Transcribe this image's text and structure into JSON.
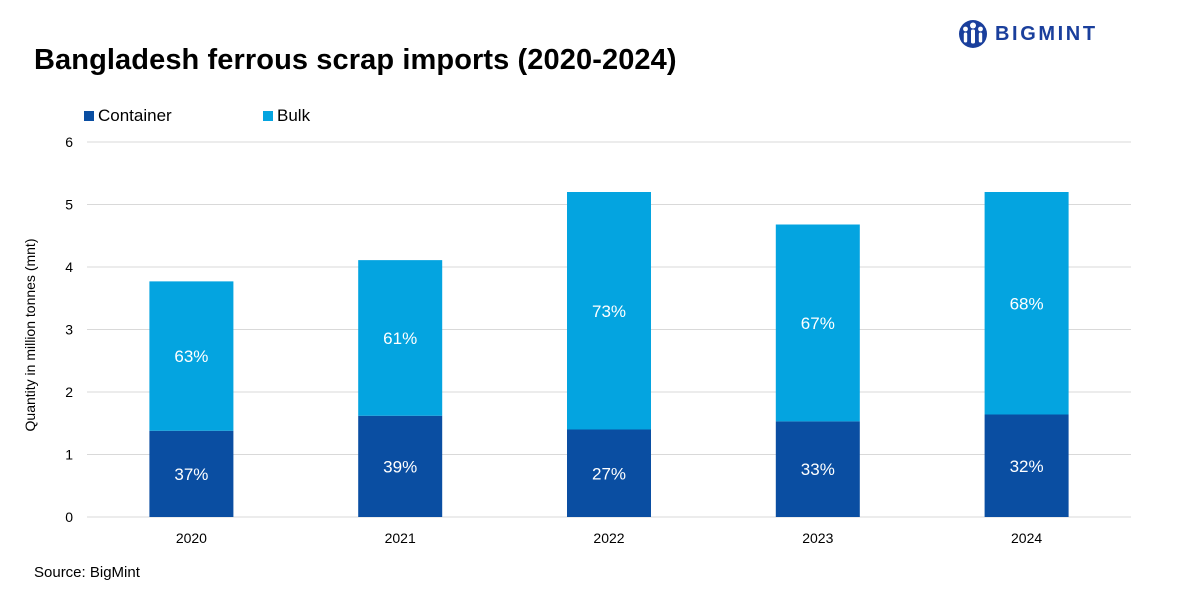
{
  "title": "Bangladesh ferrous scrap imports (2020-2024)",
  "brand": {
    "name": "BIGMINT",
    "color": "#1a3f9c"
  },
  "source": "Source: BigMint",
  "chart_data": {
    "type": "bar",
    "stacked": true,
    "categories": [
      "2020",
      "2021",
      "2022",
      "2023",
      "2024"
    ],
    "series": [
      {
        "name": "Container",
        "color": "#0a4ea2",
        "values": [
          1.38,
          1.62,
          1.4,
          1.53,
          1.64
        ],
        "labels": [
          "37%",
          "39%",
          "27%",
          "33%",
          "32%"
        ]
      },
      {
        "name": "Bulk",
        "color": "#04a4e0",
        "values": [
          2.39,
          2.49,
          3.8,
          3.15,
          3.56
        ],
        "labels": [
          "63%",
          "61%",
          "73%",
          "67%",
          "68%"
        ]
      }
    ],
    "ylabel": "Quantity in million tonnes (mnt)",
    "xlabel": "",
    "ylim": [
      0,
      6
    ],
    "yticks": [
      "0",
      "1",
      "2",
      "3",
      "4",
      "5",
      "6"
    ],
    "grid": true,
    "legend_position": "top-left",
    "data_label_color": "#ffffff",
    "gridline_color": "#d9d9d9"
  }
}
